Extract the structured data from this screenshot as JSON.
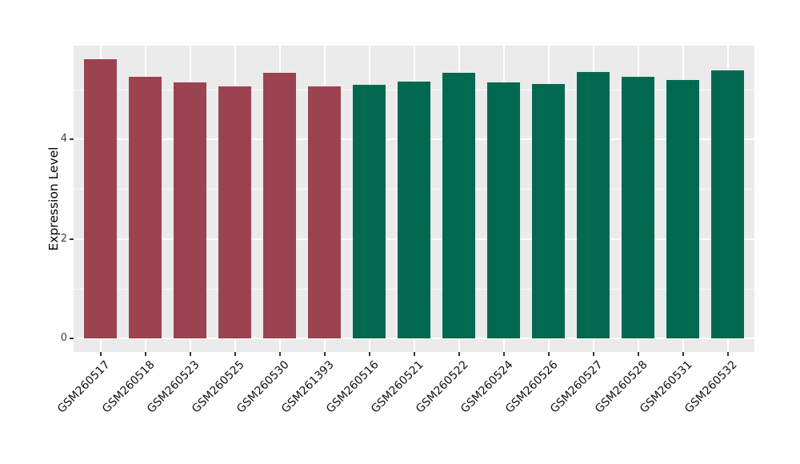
{
  "chart_data": {
    "type": "bar",
    "title": "",
    "xlabel": "",
    "ylabel": "Expression Level",
    "ylim": [
      0,
      5.9
    ],
    "yticks_major": [
      0,
      2,
      4
    ],
    "yticks_minor": [
      1,
      3,
      5
    ],
    "grid": true,
    "legend": "none",
    "panel_background": "#EBEBEB",
    "gridline_color": "#FFFFFF",
    "group_colors": {
      "maroon": "#9C4352",
      "green": "#006950"
    },
    "categories": [
      "GSM260517",
      "GSM260518",
      "GSM260523",
      "GSM260525",
      "GSM260530",
      "GSM261393",
      "GSM260516",
      "GSM260521",
      "GSM260522",
      "GSM260524",
      "GSM260526",
      "GSM260527",
      "GSM260528",
      "GSM260531",
      "GSM260532"
    ],
    "values": [
      5.61,
      5.25,
      5.15,
      5.07,
      5.34,
      5.07,
      5.1,
      5.16,
      5.34,
      5.15,
      5.11,
      5.35,
      5.25,
      5.2,
      5.38
    ],
    "groups": [
      "maroon",
      "maroon",
      "maroon",
      "maroon",
      "maroon",
      "maroon",
      "green",
      "green",
      "green",
      "green",
      "green",
      "green",
      "green",
      "green",
      "green"
    ]
  }
}
